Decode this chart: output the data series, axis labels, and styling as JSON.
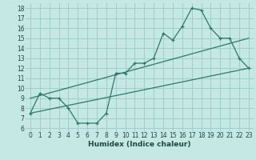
{
  "xlabel": "Humidex (Indice chaleur)",
  "bg_color": "#c5e8e5",
  "grid_color": "#9ecece",
  "line_color": "#2a7a6a",
  "xlim": [
    -0.5,
    23.5
  ],
  "ylim": [
    5.7,
    18.5
  ],
  "xticks": [
    0,
    1,
    2,
    3,
    4,
    5,
    6,
    7,
    8,
    9,
    10,
    11,
    12,
    13,
    14,
    15,
    16,
    17,
    18,
    19,
    20,
    21,
    22,
    23
  ],
  "yticks": [
    6,
    7,
    8,
    9,
    10,
    11,
    12,
    13,
    14,
    15,
    16,
    17,
    18
  ],
  "line1_x": [
    0,
    1,
    2,
    3,
    4,
    5,
    6,
    7,
    8,
    9,
    10,
    11,
    12,
    13,
    14,
    15,
    16,
    17,
    18,
    19,
    20,
    21,
    22,
    23
  ],
  "line1_y": [
    7.5,
    9.5,
    9.0,
    9.0,
    8.0,
    6.5,
    6.5,
    6.5,
    7.5,
    11.5,
    11.5,
    12.5,
    12.5,
    13.0,
    15.5,
    14.8,
    16.2,
    18.0,
    17.8,
    16.0,
    15.0,
    15.0,
    13.0,
    12.0
  ],
  "line2_x": [
    0,
    23
  ],
  "line2_y": [
    7.5,
    12.0
  ],
  "line3_x": [
    0,
    23
  ],
  "line3_y": [
    9.0,
    15.0
  ],
  "xlabel_fontsize": 6.5,
  "tick_fontsize": 5.5
}
